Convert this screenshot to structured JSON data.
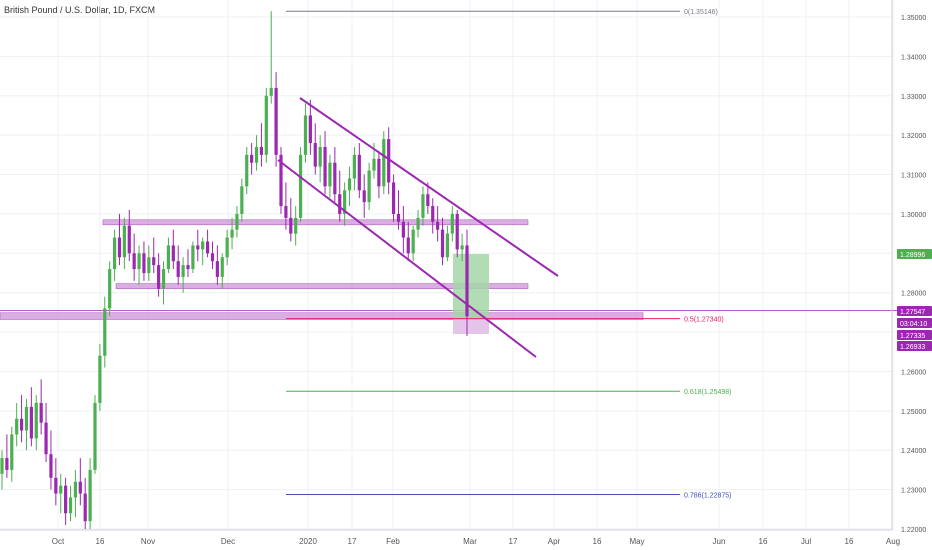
{
  "header": {
    "symbol_title": "British Pound / U.S. Dollar, 1D, FXCM"
  },
  "colors": {
    "up": "#4caf50",
    "down": "#9c27b0",
    "channel": "#9c27b0",
    "zone_fill": "#ce93d8",
    "zone_stroke": "#ab47bc",
    "fib_0": "#787b86",
    "fib_05": "#e91e63",
    "fib_0618": "#4caf50",
    "fib_0786": "#3f51b5",
    "position_profit": "#a5d6a7",
    "position_stop": "#e1bee7",
    "grid": "#eef0f3",
    "axis_text": "#555555"
  },
  "chart_data": {
    "type": "candlestick",
    "title": "British Pound / U.S. Dollar, 1D, FXCM",
    "y_axis": {
      "range": [
        1.2195,
        1.3535
      ],
      "ticks": [
        "1.22000",
        "1.23000",
        "1.24000",
        "1.25000",
        "1.26000",
        "1.27000",
        "1.28000",
        "1.29000",
        "1.30000",
        "1.31000",
        "1.32000",
        "1.33000",
        "1.34000",
        "1.35000"
      ]
    },
    "x_axis": {
      "ticks": [
        "Oct",
        "16",
        "Nov",
        "Dec",
        "2020",
        "17",
        "Feb",
        "Mar",
        "17",
        "Apr",
        "16",
        "May",
        "Jun",
        "16",
        "Jul",
        "16",
        "Aug"
      ]
    },
    "price_labels": [
      {
        "value": "1.28996",
        "bg": "#4caf50"
      },
      {
        "value": "1.27547",
        "bg": "#9c27b0"
      },
      {
        "value": "03:04:10",
        "bg": "#9c27b0"
      },
      {
        "value": "1.27335",
        "bg": "#9c27b0"
      },
      {
        "value": "1.26933",
        "bg": "#9c27b0"
      }
    ],
    "fib_levels": [
      {
        "ratio": "0",
        "price": 1.35146,
        "label": "0(1.35146)"
      },
      {
        "ratio": "0.5",
        "price": 1.2734,
        "label": "0.5(1.27340)"
      },
      {
        "ratio": "0.618",
        "price": 1.25498,
        "label": "0.618(1.25498)"
      },
      {
        "ratio": "0.786",
        "price": 1.22875,
        "label": "0.786(1.22875)"
      }
    ],
    "zones": [
      {
        "from": 1.2976,
        "to": 1.2985
      },
      {
        "from": 1.2815,
        "to": 1.2823
      },
      {
        "from": 1.2732,
        "to": 1.2749
      }
    ],
    "candles": [
      [
        1.234,
        1.24,
        1.23,
        1.238
      ],
      [
        1.238,
        1.244,
        1.233,
        1.235
      ],
      [
        1.235,
        1.246,
        1.232,
        1.244
      ],
      [
        1.244,
        1.252,
        1.241,
        1.248
      ],
      [
        1.248,
        1.254,
        1.242,
        1.245
      ],
      [
        1.245,
        1.253,
        1.24,
        1.251
      ],
      [
        1.251,
        1.256,
        1.241,
        1.243
      ],
      [
        1.243,
        1.254,
        1.24,
        1.252
      ],
      [
        1.252,
        1.258,
        1.244,
        1.247
      ],
      [
        1.247,
        1.252,
        1.237,
        1.239
      ],
      [
        1.239,
        1.245,
        1.23,
        1.233
      ],
      [
        1.233,
        1.238,
        1.226,
        1.229
      ],
      [
        1.229,
        1.234,
        1.224,
        1.231
      ],
      [
        1.231,
        1.233,
        1.221,
        1.224
      ],
      [
        1.224,
        1.231,
        1.222,
        1.228
      ],
      [
        1.228,
        1.235,
        1.223,
        1.232
      ],
      [
        1.232,
        1.238,
        1.226,
        1.229
      ],
      [
        1.229,
        1.233,
        1.22,
        1.222
      ],
      [
        1.222,
        1.238,
        1.22,
        1.235
      ],
      [
        1.235,
        1.254,
        1.234,
        1.252
      ],
      [
        1.252,
        1.267,
        1.25,
        1.264
      ],
      [
        1.264,
        1.279,
        1.261,
        1.276
      ],
      [
        1.276,
        1.288,
        1.274,
        1.286
      ],
      [
        1.286,
        1.296,
        1.283,
        1.294
      ],
      [
        1.294,
        1.3,
        1.287,
        1.289
      ],
      [
        1.289,
        1.299,
        1.286,
        1.297
      ],
      [
        1.297,
        1.301,
        1.288,
        1.29
      ],
      [
        1.29,
        1.295,
        1.283,
        1.286
      ],
      [
        1.286,
        1.292,
        1.282,
        1.29
      ],
      [
        1.29,
        1.293,
        1.283,
        1.285
      ],
      [
        1.285,
        1.292,
        1.283,
        1.289
      ],
      [
        1.289,
        1.294,
        1.285,
        1.287
      ],
      [
        1.287,
        1.29,
        1.279,
        1.281
      ],
      [
        1.281,
        1.288,
        1.277,
        1.286
      ],
      [
        1.286,
        1.294,
        1.285,
        1.292
      ],
      [
        1.292,
        1.296,
        1.286,
        1.288
      ],
      [
        1.288,
        1.292,
        1.282,
        1.284
      ],
      [
        1.284,
        1.289,
        1.28,
        1.287
      ],
      [
        1.287,
        1.291,
        1.284,
        1.286
      ],
      [
        1.286,
        1.293,
        1.285,
        1.292
      ],
      [
        1.292,
        1.296,
        1.288,
        1.291
      ],
      [
        1.291,
        1.294,
        1.287,
        1.293
      ],
      [
        1.293,
        1.296,
        1.289,
        1.29
      ],
      [
        1.29,
        1.293,
        1.286,
        1.288
      ],
      [
        1.288,
        1.292,
        1.282,
        1.284
      ],
      [
        1.284,
        1.29,
        1.281,
        1.289
      ],
      [
        1.289,
        1.296,
        1.287,
        1.294
      ],
      [
        1.294,
        1.299,
        1.291,
        1.296
      ],
      [
        1.296,
        1.302,
        1.294,
        1.3
      ],
      [
        1.3,
        1.309,
        1.298,
        1.307
      ],
      [
        1.307,
        1.317,
        1.305,
        1.315
      ],
      [
        1.315,
        1.318,
        1.31,
        1.313
      ],
      [
        1.313,
        1.32,
        1.311,
        1.317
      ],
      [
        1.317,
        1.323,
        1.312,
        1.315
      ],
      [
        1.315,
        1.332,
        1.313,
        1.33
      ],
      [
        1.33,
        1.3515,
        1.328,
        1.332
      ],
      [
        1.332,
        1.336,
        1.312,
        1.315
      ],
      [
        1.315,
        1.317,
        1.3,
        1.302
      ],
      [
        1.302,
        1.308,
        1.296,
        1.299
      ],
      [
        1.299,
        1.304,
        1.293,
        1.295
      ],
      [
        1.295,
        1.302,
        1.292,
        1.299
      ],
      [
        1.299,
        1.317,
        1.298,
        1.315
      ],
      [
        1.315,
        1.328,
        1.313,
        1.325
      ],
      [
        1.325,
        1.329,
        1.315,
        1.318
      ],
      [
        1.318,
        1.323,
        1.31,
        1.312
      ],
      [
        1.312,
        1.32,
        1.308,
        1.317
      ],
      [
        1.317,
        1.321,
        1.305,
        1.307
      ],
      [
        1.307,
        1.315,
        1.304,
        1.313
      ],
      [
        1.313,
        1.317,
        1.303,
        1.305
      ],
      [
        1.305,
        1.311,
        1.298,
        1.3
      ],
      [
        1.3,
        1.308,
        1.297,
        1.306
      ],
      [
        1.306,
        1.312,
        1.302,
        1.309
      ],
      [
        1.309,
        1.317,
        1.306,
        1.315
      ],
      [
        1.315,
        1.318,
        1.304,
        1.306
      ],
      [
        1.306,
        1.31,
        1.299,
        1.303
      ],
      [
        1.303,
        1.313,
        1.301,
        1.311
      ],
      [
        1.311,
        1.318,
        1.309,
        1.314
      ],
      [
        1.314,
        1.316,
        1.304,
        1.307
      ],
      [
        1.307,
        1.321,
        1.305,
        1.319
      ],
      [
        1.319,
        1.322,
        1.305,
        1.308
      ],
      [
        1.308,
        1.31,
        1.298,
        1.3
      ],
      [
        1.3,
        1.306,
        1.296,
        1.298
      ],
      [
        1.298,
        1.302,
        1.29,
        1.294
      ],
      [
        1.294,
        1.298,
        1.288,
        1.29
      ],
      [
        1.29,
        1.297,
        1.288,
        1.296
      ],
      [
        1.296,
        1.301,
        1.294,
        1.299
      ],
      [
        1.299,
        1.307,
        1.297,
        1.305
      ],
      [
        1.305,
        1.308,
        1.3,
        1.302
      ],
      [
        1.302,
        1.304,
        1.295,
        1.298
      ],
      [
        1.298,
        1.302,
        1.293,
        1.296
      ],
      [
        1.296,
        1.299,
        1.287,
        1.289
      ],
      [
        1.289,
        1.297,
        1.288,
        1.295
      ],
      [
        1.295,
        1.302,
        1.293,
        1.3
      ],
      [
        1.3,
        1.301,
        1.289,
        1.291
      ],
      [
        1.291,
        1.295,
        1.288,
        1.292
      ],
      [
        1.292,
        1.296,
        1.269,
        1.274
      ]
    ]
  }
}
